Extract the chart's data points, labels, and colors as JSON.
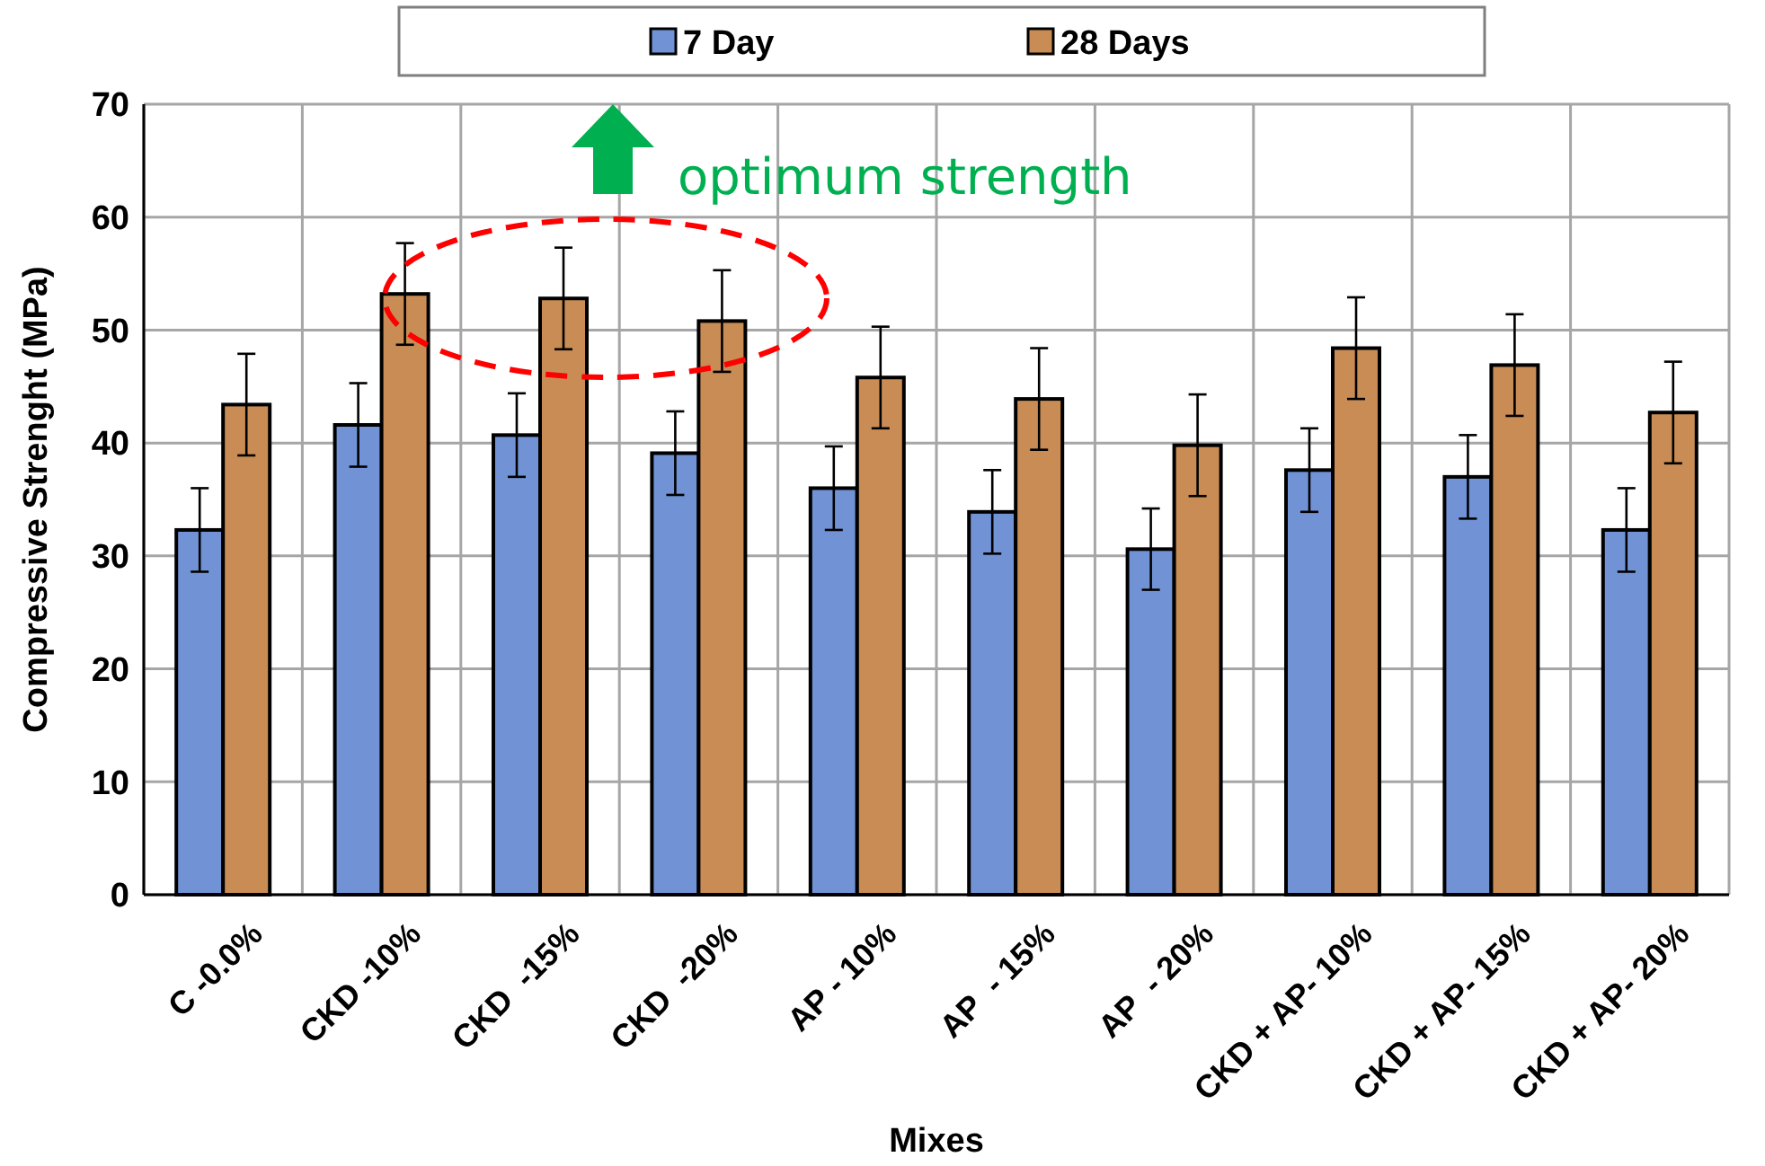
{
  "chart_data": {
    "type": "bar",
    "xlabel": "Mixes",
    "ylabel": "Compressive Strenght (MPa)",
    "categories": [
      "C -0.0%",
      "CKD -10%",
      "CKD  -15%",
      "CKD  -20%",
      "AP - 10%",
      "AP  - 15%",
      "AP  - 20%",
      "CKD + AP- 10%",
      "CKD + AP- 15%",
      "CKD + AP- 20%"
    ],
    "series": [
      {
        "name": "7 Day",
        "color": "#7193d6",
        "values": [
          32.3,
          41.6,
          40.7,
          39.1,
          36.0,
          33.9,
          30.6,
          37.6,
          37.0,
          32.3
        ],
        "errors": [
          3.7,
          3.7,
          3.7,
          3.7,
          3.7,
          3.7,
          3.6,
          3.7,
          3.7,
          3.7
        ]
      },
      {
        "name": "28 Days",
        "color": "#c98c55",
        "values": [
          43.4,
          53.2,
          52.8,
          50.8,
          45.8,
          43.9,
          39.8,
          48.4,
          46.9,
          42.7
        ],
        "errors": [
          4.5,
          4.5,
          4.5,
          4.5,
          4.5,
          4.5,
          4.5,
          4.5,
          4.5,
          4.5
        ]
      }
    ],
    "ylim": [
      0,
      70
    ],
    "yticks": [
      0,
      10,
      20,
      30,
      40,
      50,
      60,
      70
    ],
    "grid": true,
    "legend": "top",
    "annotations": [
      "optimum strength"
    ]
  }
}
